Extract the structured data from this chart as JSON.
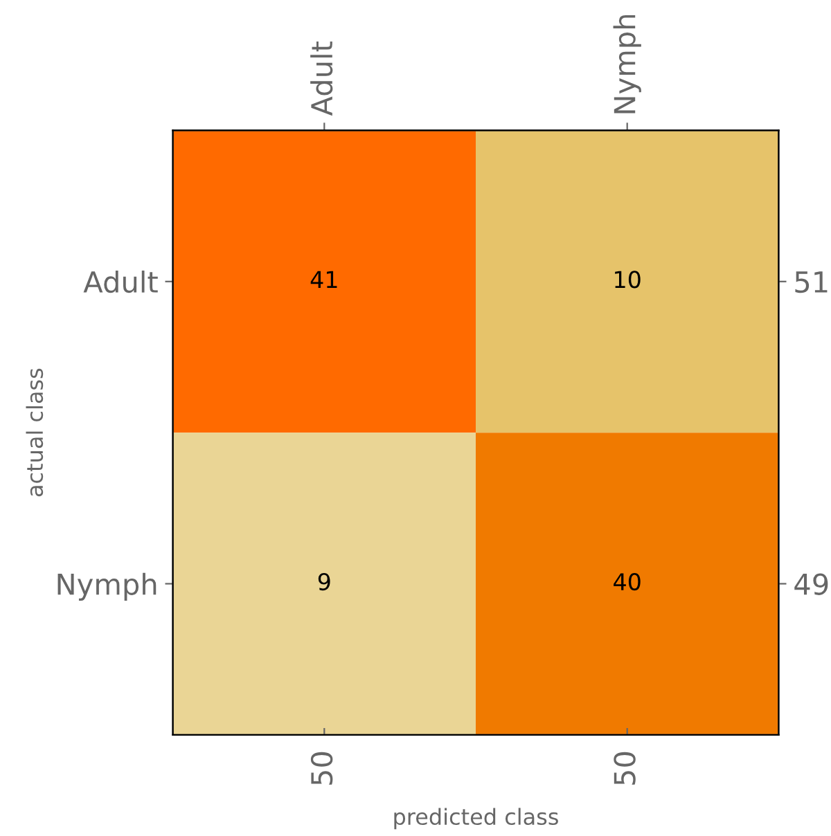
{
  "chart_data": {
    "type": "heatmap",
    "xlabel": "predicted class",
    "ylabel": "actual class",
    "categories": [
      "Adult",
      "Nymph"
    ],
    "y_categories": [
      "Adult",
      "Nymph"
    ],
    "y2_categories": [
      "51",
      "49"
    ],
    "cells": [
      [
        41,
        10
      ],
      [
        9,
        40
      ]
    ],
    "data_labels": true,
    "colors": [
      "#ff6a00",
      "#e6c36a",
      "#ead595",
      "#f07a00"
    ],
    "annotations": [
      "50",
      "50"
    ]
  }
}
